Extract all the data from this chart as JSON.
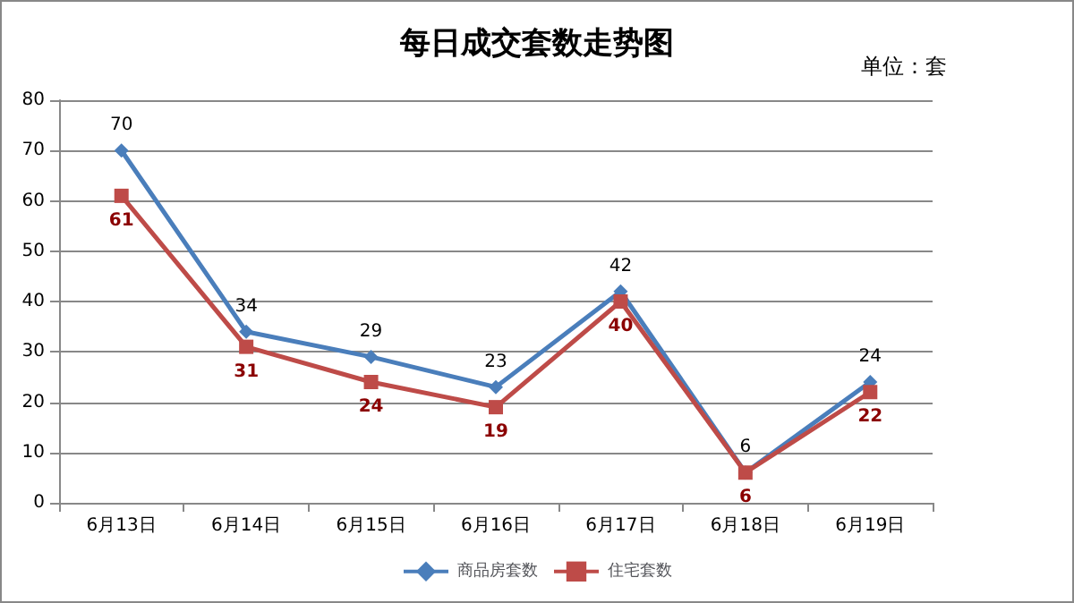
{
  "chart_data": {
    "type": "line",
    "title": "每日成交套数走势图",
    "annotations": [
      "单位：套"
    ],
    "categories": [
      "6月13日",
      "6月14日",
      "6月15日",
      "6月16日",
      "6月17日",
      "6月18日",
      "6月19日"
    ],
    "series": [
      {
        "name": "商品房套数",
        "color": "#4a7ebb",
        "marker": "diamond",
        "values": [
          70,
          34,
          29,
          23,
          42,
          6,
          24
        ]
      },
      {
        "name": "住宅套数",
        "color": "#be4b48",
        "marker": "square",
        "values": [
          61,
          31,
          24,
          19,
          40,
          6,
          22
        ]
      }
    ],
    "ylim": [
      0,
      80
    ],
    "yticks": [
      0,
      10,
      20,
      30,
      40,
      50,
      60,
      70,
      80
    ],
    "grid": "y",
    "legend": "bottom",
    "data_labels": true
  }
}
